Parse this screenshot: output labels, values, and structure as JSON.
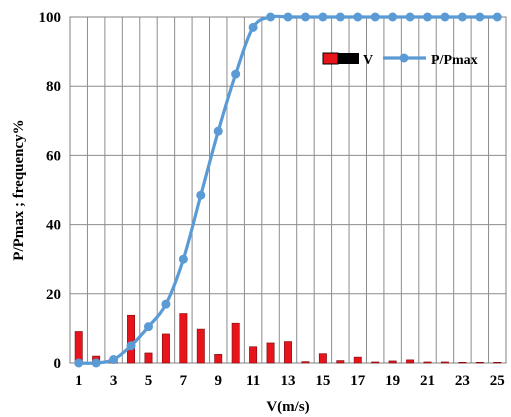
{
  "chart_data": {
    "type": "bar+line",
    "xlabel": "V(m/s)",
    "ylabel": "P/Pmax ; frequency%",
    "ylim": [
      0,
      100
    ],
    "yticks": [
      0,
      20,
      40,
      60,
      80,
      100
    ],
    "x": [
      1,
      2,
      3,
      4,
      5,
      6,
      7,
      8,
      9,
      10,
      11,
      12,
      13,
      14,
      15,
      16,
      17,
      18,
      19,
      20,
      21,
      22,
      23,
      24,
      25
    ],
    "xtick_labels": [
      "1",
      "3",
      "5",
      "7",
      "9",
      "11",
      "13",
      "15",
      "17",
      "19",
      "21",
      "23",
      "25"
    ],
    "grid": true,
    "legend_position": "top-right",
    "series": [
      {
        "name": "V",
        "kind": "bar",
        "color": "#e8141b",
        "values": [
          9.1,
          2.0,
          1.3,
          13.8,
          2.9,
          8.4,
          14.3,
          9.8,
          2.5,
          11.5,
          4.7,
          5.8,
          6.2,
          0.4,
          2.7,
          0.7,
          1.7,
          0.3,
          0.6,
          0.9,
          0.3,
          0.3,
          0.2,
          0.2,
          0.2
        ]
      },
      {
        "name": "P/Pmax",
        "kind": "line",
        "color": "#5b9bd5",
        "values": [
          0,
          0,
          1,
          5,
          10.5,
          17,
          30,
          48.5,
          67,
          83.5,
          97,
          100,
          100,
          100,
          100,
          100,
          100,
          100,
          100,
          100,
          100,
          100,
          100,
          100,
          100
        ]
      }
    ]
  }
}
